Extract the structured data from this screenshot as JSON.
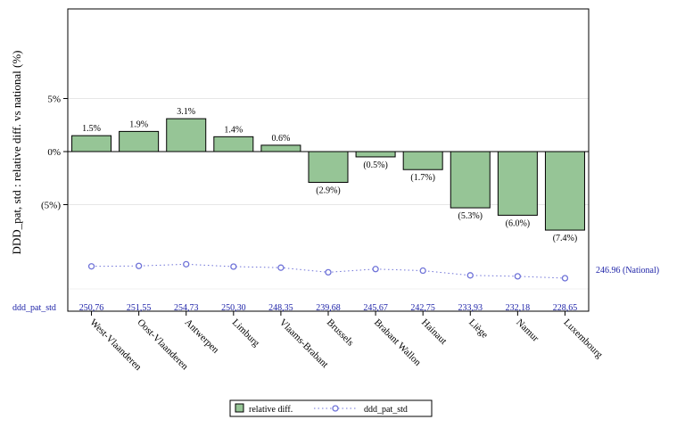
{
  "chart_data": {
    "type": "bar",
    "ylabel": "DDD_pat, std : relative diff. vs national (%)",
    "categories": [
      "West-Vlaanderen",
      "Oost-Vlaanderen",
      "Antwerpen",
      "Limburg",
      "Vlaams-Brabant",
      "Brussels",
      "Brabant Wallon",
      "Hainaut",
      "Liège",
      "Namur",
      "Luxembourg"
    ],
    "series": [
      {
        "name": "relative diff.",
        "type": "bar",
        "color": "#96c596",
        "values": [
          1.5,
          1.9,
          3.1,
          1.4,
          0.6,
          -2.9,
          -0.5,
          -1.7,
          -5.3,
          -6.0,
          -7.4
        ],
        "labels": [
          "1.5%",
          "1.9%",
          "3.1%",
          "1.4%",
          "0.6%",
          "(2.9%)",
          "(0.5%)",
          "(1.7%)",
          "(5.3%)",
          "(6.0%)",
          "(7.4%)"
        ]
      },
      {
        "name": "ddd_pat_std",
        "type": "line",
        "color": "#6f73d8",
        "values": [
          250.76,
          251.55,
          254.73,
          250.3,
          248.35,
          239.68,
          245.67,
          242.75,
          233.93,
          232.18,
          228.65
        ],
        "labels": [
          "250,76",
          "251,55",
          "254,73",
          "250,30",
          "248,35",
          "239,68",
          "245,67",
          "242,75",
          "233,93",
          "232,18",
          "228,65"
        ]
      }
    ],
    "yticks": [
      {
        "value": 5,
        "label": "5%"
      },
      {
        "value": 0,
        "label": "0%"
      },
      {
        "value": -5,
        "label": "(5%)"
      }
    ],
    "national_value": 246.96,
    "national_label": "246.96 (National)",
    "row_label": "ddd_pat_std",
    "grid": true,
    "legend_position": "bottom"
  }
}
